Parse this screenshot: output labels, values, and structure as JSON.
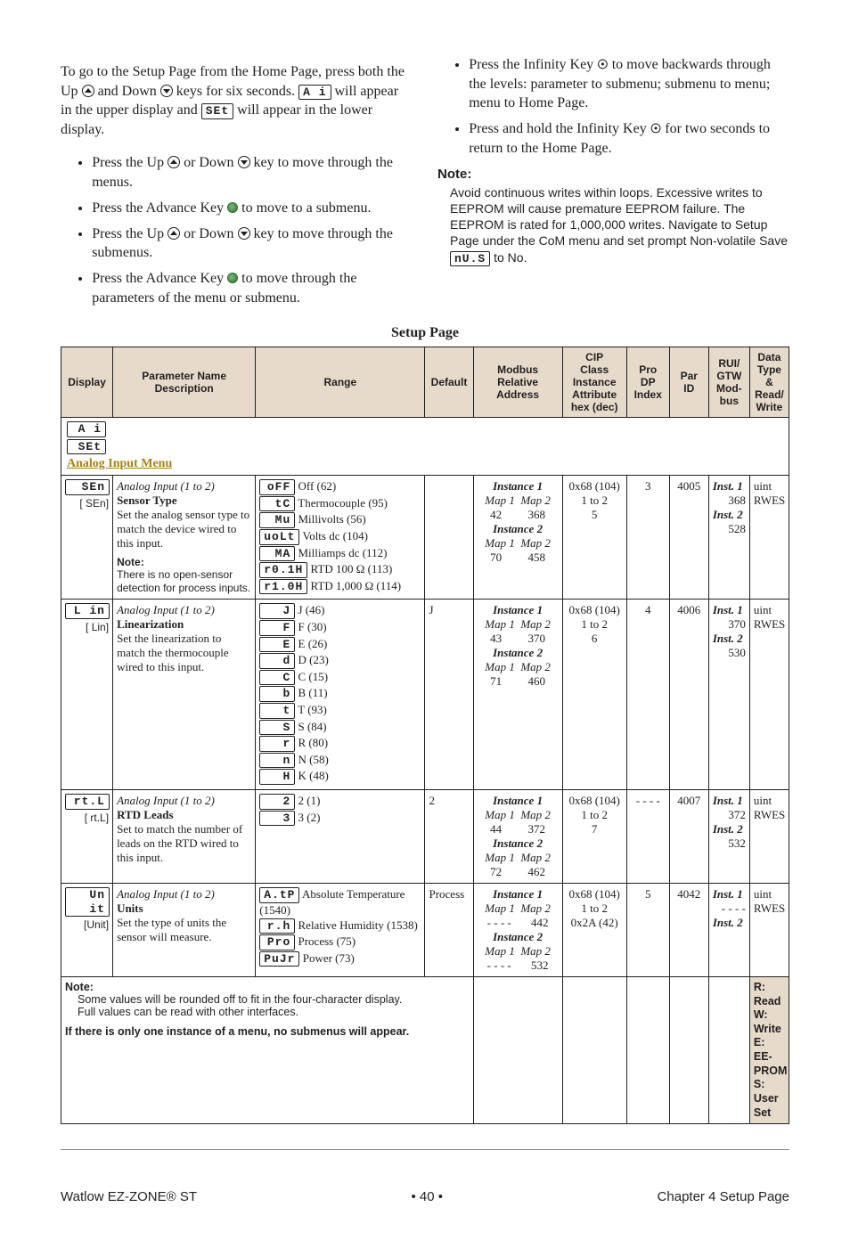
{
  "colors": {
    "text": "#231f20",
    "header_bg": "#e6daca",
    "menu_accent": "#a8801a"
  },
  "intro": {
    "left_para": "To go to the Setup Page from the Home Page, press both the Up {up} and Down {down} keys for six seconds. {seg_Ai} will appear in the upper display and {seg_SEt} will appear in the lower display.",
    "left_bullets": [
      "Press the Up {up} or Down {down} key to move through the menus.",
      "Press the Advance Key {adv} to move to a submenu.",
      "Press the Up {up} or Down {down} key to move through the submenus.",
      "Press the Advance Key {adv} to move through the parameters of the menu or submenu."
    ],
    "right_bullets": [
      "Press the Infinity Key {inf} to move backwards through the levels: parameter to submenu; submenu to menu; menu to Home Page.",
      "Press and hold the Infinity Key {inf} for two seconds to return to the Home Page."
    ],
    "note_head": "Note:",
    "note_body": "Avoid continuous writes within loops. Excessive writes to EEPROM will cause premature EEPROM failure. The EEPROM is rated for 1,000,000 writes. Navigate to Setup Page under the CoM menu and set prompt Non-volatile Save {seg_nUS} to No.",
    "seg_Ai": "A i",
    "seg_SEt": "SEt",
    "seg_nUS": "nU.S"
  },
  "table_title": "Setup Page",
  "headers": {
    "display": "Display",
    "name": "Parameter Name\nDescription",
    "range": "Range",
    "default": "Default",
    "modbus": "Modbus\nRelative\nAddress",
    "cip": "CIP\nClass\nInstance\nAttribute\nhex (dec)",
    "prodp": "Pro DP\nIndex",
    "parid": "Par\nID",
    "rui": "RUI/\nGTW\nMod-\nbus",
    "dtw": "Data\nType\n&\nRead/\nWrite"
  },
  "menu_row": {
    "seg1": "A i",
    "seg2": "SEt",
    "label": "Analog Input Menu"
  },
  "rows": [
    {
      "display_seg": "SEn",
      "display_code": "[ SEn]",
      "name_hdr": "Analog Input (1 to 2)",
      "name_strong": "Sensor Type",
      "name_desc": "Set the analog sensor type to match the device wired to this input.",
      "name_note_lbl": "Note:",
      "name_note_txt": "There is no open-sensor detection for process inputs.",
      "range": [
        {
          "seg": "oFF",
          "txt": "Off (62)"
        },
        {
          "seg": "tC",
          "txt": "Thermocouple (95)"
        },
        {
          "seg": "Mu",
          "txt": "Millivolts (56)"
        },
        {
          "seg": "uoLt",
          "txt": "Volts dc (104)"
        },
        {
          "seg": "MA",
          "txt": "Milliamps dc (112)"
        },
        {
          "seg": "r0.1H",
          "txt": "RTD 100 Ω (113)"
        },
        {
          "seg": "r1.0H",
          "txt": "RTD 1,000 Ω (114)"
        }
      ],
      "default": "",
      "modbus": {
        "i1m1": "42",
        "i1m2": "368",
        "i2m1": "70",
        "i2m2": "458"
      },
      "cip": "0x68 (104)\n1 to 2\n5",
      "prodp": "3",
      "parid": "4005",
      "rui": {
        "i1": "368",
        "i2": "528"
      },
      "dtw": "uint\nRWES"
    },
    {
      "display_seg": "L in",
      "display_code": "[ Lin]",
      "name_hdr": "Analog Input (1 to 2)",
      "name_strong": "Linearization",
      "name_desc": "Set the linearization to match the thermocouple wired to this input.",
      "name_note_lbl": "",
      "name_note_txt": "",
      "range": [
        {
          "seg": "J",
          "txt": "J (46)"
        },
        {
          "seg": "F",
          "txt": "F (30)"
        },
        {
          "seg": "E",
          "txt": "E (26)"
        },
        {
          "seg": "d",
          "txt": "D (23)"
        },
        {
          "seg": "C",
          "txt": "C (15)"
        },
        {
          "seg": "b",
          "txt": "B (11)"
        },
        {
          "seg": "t",
          "txt": "T (93)"
        },
        {
          "seg": "S",
          "txt": "S (84)"
        },
        {
          "seg": "r",
          "txt": "R (80)"
        },
        {
          "seg": "n",
          "txt": "N (58)"
        },
        {
          "seg": "H",
          "txt": "K (48)"
        }
      ],
      "default": "J",
      "modbus": {
        "i1m1": "43",
        "i1m2": "370",
        "i2m1": "71",
        "i2m2": "460"
      },
      "cip": "0x68 (104)\n1 to 2\n6",
      "prodp": "4",
      "parid": "4006",
      "rui": {
        "i1": "370",
        "i2": "530"
      },
      "dtw": "uint\nRWES"
    },
    {
      "display_seg": "rt.L",
      "display_code": "[ rt.L]",
      "name_hdr": "Analog Input (1 to 2)",
      "name_strong": "RTD Leads",
      "name_desc": "Set to match the number of leads on the RTD wired to this input.",
      "name_note_lbl": "",
      "name_note_txt": "",
      "range": [
        {
          "seg": "2",
          "txt": "2 (1)"
        },
        {
          "seg": "3",
          "txt": "3 (2)"
        }
      ],
      "default": "2",
      "modbus": {
        "i1m1": "44",
        "i1m2": "372",
        "i2m1": "72",
        "i2m2": "462"
      },
      "cip": "0x68 (104)\n1 to 2\n7",
      "prodp": "- - - -",
      "parid": "4007",
      "rui": {
        "i1": "372",
        "i2": "532"
      },
      "dtw": "uint\nRWES"
    },
    {
      "display_seg": "Un it",
      "display_code": "[Unit]",
      "name_hdr": "Analog Input (1 to 2)",
      "name_strong": "Units",
      "name_desc": "Set the type of units the sensor will measure.",
      "name_note_lbl": "",
      "name_note_txt": "",
      "range": [
        {
          "seg": "A.tP",
          "txt": "Absolute Temperature (1540)"
        },
        {
          "seg": "r.h",
          "txt": "Relative Humidity (1538)"
        },
        {
          "seg": "Pro",
          "txt": "Process (75)"
        },
        {
          "seg": "PuJr",
          "txt": "Power (73)"
        }
      ],
      "default": "Process",
      "modbus": {
        "i1m1": "- - - -",
        "i1m2": "442",
        "i2m1": "- - - -",
        "i2m2": "532"
      },
      "cip": "0x68 (104)\n1 to 2\n0x2A (42)",
      "prodp": "5",
      "parid": "4042",
      "rui": {
        "i1": "- - - -",
        "i2": ""
      },
      "dtw": "uint\nRWES"
    }
  ],
  "footnote": {
    "lbl": "Note:",
    "l1": "Some values will be rounded off to fit in the four-character display.",
    "l2": "Full values can be read with other interfaces.",
    "emph": "If there is only one instance of a menu, no submenus will appear."
  },
  "legend": "R: Read\nW: Write\nE: EE-PROM\nS: User Set",
  "footer": {
    "left": "Watlow EZ-ZONE® ST",
    "center": "•  40  •",
    "right": "Chapter 4 Setup Page"
  }
}
